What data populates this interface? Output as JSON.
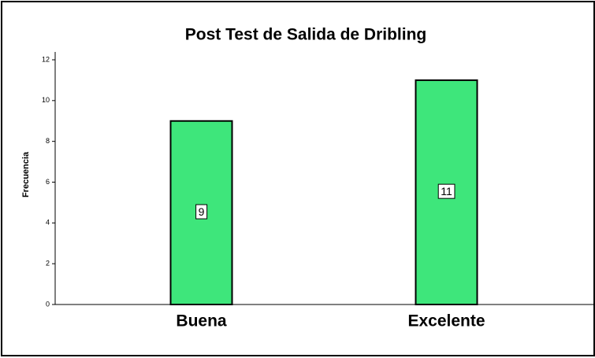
{
  "chart_data": {
    "type": "bar",
    "title": "Post Test de Salida de Dribling",
    "y_label": "Frecuencia",
    "categories": [
      "Buena",
      "Excelente"
    ],
    "values": [
      9,
      11
    ],
    "color": "#3ee67b",
    "ylim": [
      0,
      12
    ],
    "yticks": [
      0,
      2,
      4,
      6,
      8,
      10,
      12
    ],
    "grid": false
  }
}
